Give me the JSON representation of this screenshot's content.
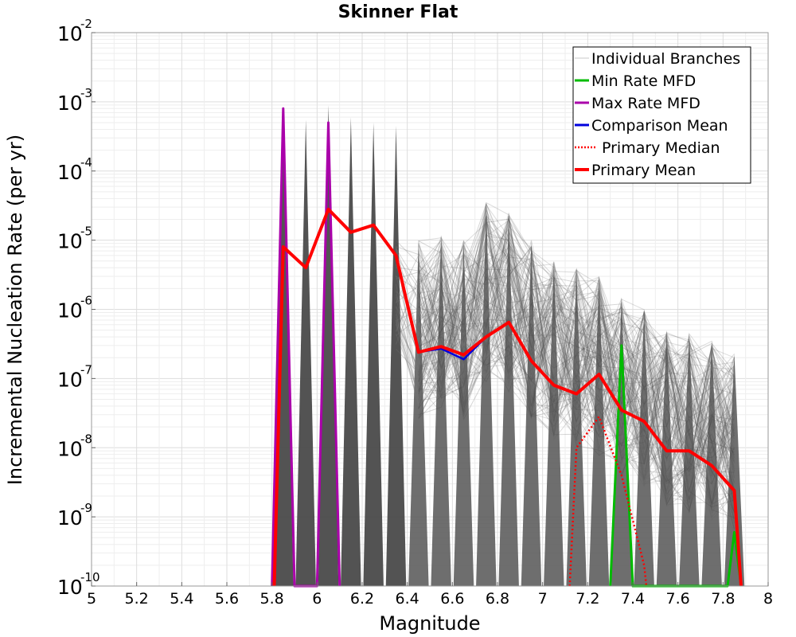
{
  "chart_data": {
    "type": "line",
    "title": "Skinner Flat",
    "xlabel": "Magnitude",
    "ylabel": "Incremental Nucleation Rate (per yr)",
    "xlim": [
      5,
      8
    ],
    "ylim": [
      1e-10,
      0.01
    ],
    "yscale": "log",
    "grid": true,
    "legend_position": "top-right",
    "x_ticks": [
      "5",
      "5.2",
      "5.4",
      "5.6",
      "5.8",
      "6",
      "6.2",
      "6.4",
      "6.6",
      "6.8",
      "7",
      "7.2",
      "7.4",
      "7.6",
      "7.8",
      "8"
    ],
    "y_ticks": [
      {
        "base": "10",
        "exp": "-10"
      },
      {
        "base": "10",
        "exp": "-9"
      },
      {
        "base": "10",
        "exp": "-8"
      },
      {
        "base": "10",
        "exp": "-7"
      },
      {
        "base": "10",
        "exp": "-6"
      },
      {
        "base": "10",
        "exp": "-5"
      },
      {
        "base": "10",
        "exp": "-4"
      },
      {
        "base": "10",
        "exp": "-3"
      },
      {
        "base": "10",
        "exp": "-2"
      }
    ],
    "legend": [
      {
        "label": "Individual Branches",
        "color": "#c8c8c8",
        "style": "thin"
      },
      {
        "label": "Min Rate MFD",
        "color": "#00bb00",
        "style": "solid"
      },
      {
        "label": "Max Rate MFD",
        "color": "#aa00aa",
        "style": "solid"
      },
      {
        "label": "Comparison Mean",
        "color": "#0000dd",
        "style": "solid"
      },
      {
        "label": "Primary Median",
        "color": "#ff0000",
        "style": "dotted"
      },
      {
        "label": "Primary Mean",
        "color": "#ff0000",
        "style": "thick"
      }
    ],
    "series": [
      {
        "name": "Primary Mean",
        "color": "#ff0000",
        "x": [
          5.81,
          5.85,
          5.95,
          6.05,
          6.15,
          6.25,
          6.35,
          6.45,
          6.55,
          6.65,
          6.75,
          6.85,
          6.95,
          7.05,
          7.15,
          7.25,
          7.35,
          7.45,
          7.55,
          7.65,
          7.75,
          7.85,
          7.88
        ],
        "y": [
          1e-10,
          8e-06,
          4e-06,
          2.8e-05,
          1.3e-05,
          1.65e-05,
          6e-06,
          2.4e-07,
          2.9e-07,
          2.2e-07,
          4e-07,
          6.5e-07,
          1.8e-07,
          8e-08,
          6e-08,
          1.15e-07,
          3.5e-08,
          2.4e-08,
          9e-09,
          9e-09,
          5.5e-09,
          2.4e-09,
          1e-10
        ]
      },
      {
        "name": "Comparison Mean",
        "color": "#0000dd",
        "x": [
          6.45,
          6.55,
          6.65,
          6.75
        ],
        "y": [
          2.4e-07,
          2.7e-07,
          1.9e-07,
          4e-07
        ]
      },
      {
        "name": "Primary Median",
        "color": "#ff0000",
        "x": [
          7.12,
          7.15,
          7.25,
          7.35,
          7.45,
          7.46
        ],
        "y": [
          1e-10,
          1e-08,
          2.8e-08,
          4e-09,
          2e-10,
          1e-10
        ]
      },
      {
        "name": "Max Rate MFD",
        "color": "#aa00aa",
        "x": [
          5.8,
          5.85,
          5.9,
          6.0,
          6.05,
          6.1
        ],
        "y": [
          1e-10,
          0.0008,
          1e-10,
          1e-10,
          0.0005,
          1e-10
        ]
      },
      {
        "name": "Min Rate MFD",
        "color": "#00bb00",
        "x": [
          7.3,
          7.35,
          7.4,
          7.82,
          7.85,
          7.88
        ],
        "y": [
          1e-10,
          3e-07,
          1e-10,
          1e-10,
          6e-10,
          1e-10
        ]
      }
    ],
    "branch_peaks": {
      "x": [
        5.85,
        5.95,
        6.05,
        6.15,
        6.25,
        6.35,
        6.45,
        6.55,
        6.65,
        6.75,
        6.85,
        6.95,
        7.05,
        7.15,
        7.25,
        7.35,
        7.45,
        7.55,
        7.65,
        7.75,
        7.85
      ],
      "y": [
        0.0008,
        0.00055,
        0.0009,
        0.0006,
        0.0005,
        0.00045,
        1e-05,
        1.2e-05,
        1e-05,
        3.5e-05,
        2.5e-05,
        1e-05,
        5e-06,
        4e-06,
        3e-06,
        1.5e-06,
        1e-06,
        5e-07,
        4.5e-07,
        3.5e-07,
        2.3e-07
      ]
    }
  }
}
